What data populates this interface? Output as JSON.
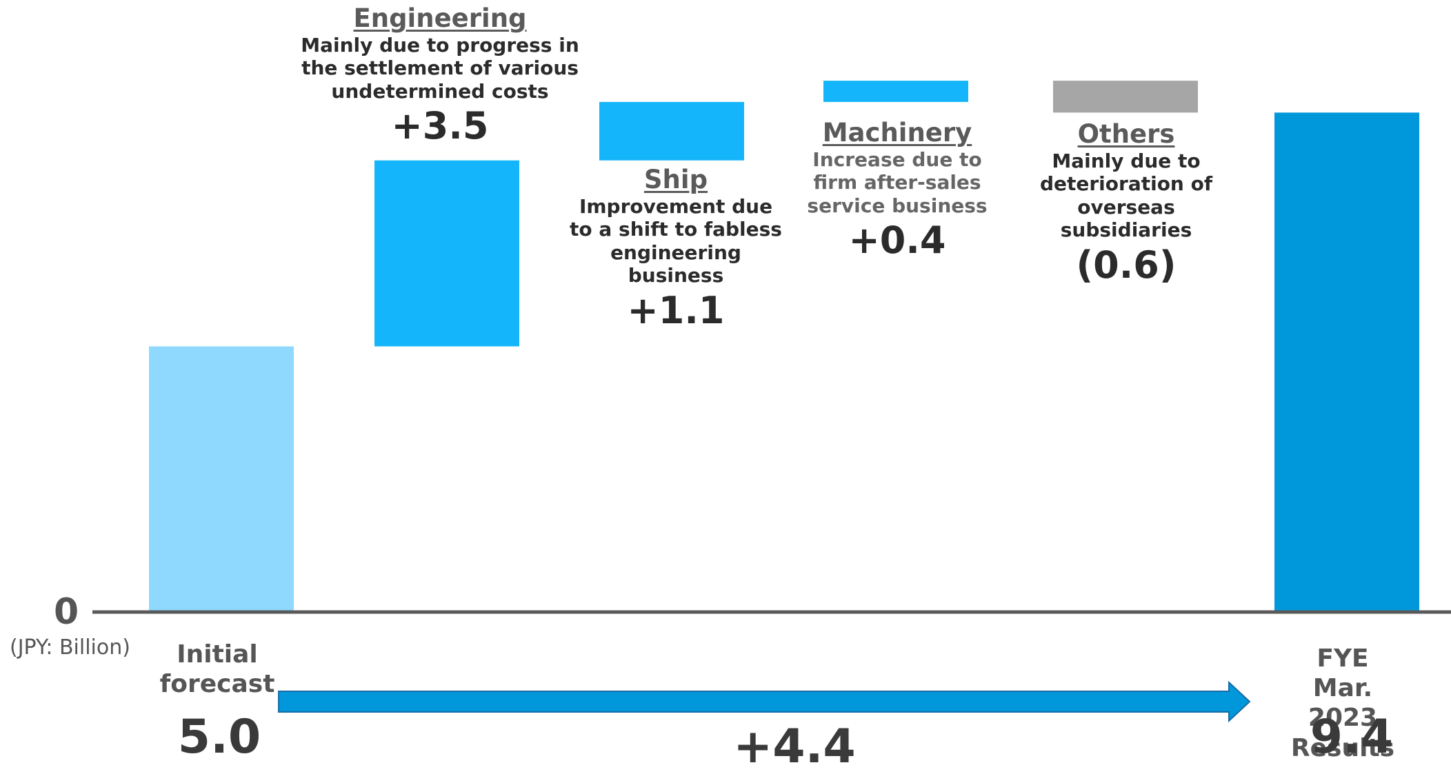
{
  "chart_data": {
    "type": "waterfall",
    "unit_label": "(JPY: Billion)",
    "zero_label": "0",
    "ylim": [
      0,
      11
    ],
    "colors": {
      "start": "#8ED9FD",
      "increase": "#14B5FA",
      "decrease": "#A6A6A6",
      "end": "#0098DA",
      "arrow": "#0098DA",
      "axis": "#595959"
    },
    "start": {
      "label": "Initial\nforecast",
      "value": 5.0,
      "value_label": "5.0"
    },
    "steps": [
      {
        "name": "Engineering",
        "note": "Mainly due to progress in\nthe settlement of various\nundetermined costs",
        "delta": 3.5,
        "delta_label": "+3.5"
      },
      {
        "name": "Ship",
        "note": "Improvement due\nto a shift to fabless\nengineering\nbusiness",
        "delta": 1.1,
        "delta_label": "+1.1"
      },
      {
        "name": "Machinery",
        "note": "Increase due to\nfirm after-sales\nservice business",
        "delta": 0.4,
        "delta_label": "+0.4"
      },
      {
        "name": "Others",
        "note": "Mainly due to\ndeterioration of\noverseas\nsubsidiaries",
        "delta": -0.6,
        "delta_label": "(0.6)"
      }
    ],
    "end": {
      "label": "FYE Mar. 2023\nResults",
      "value": 9.4,
      "value_label": "9.4"
    },
    "change": {
      "value": 4.4,
      "label": "+4.4"
    }
  }
}
